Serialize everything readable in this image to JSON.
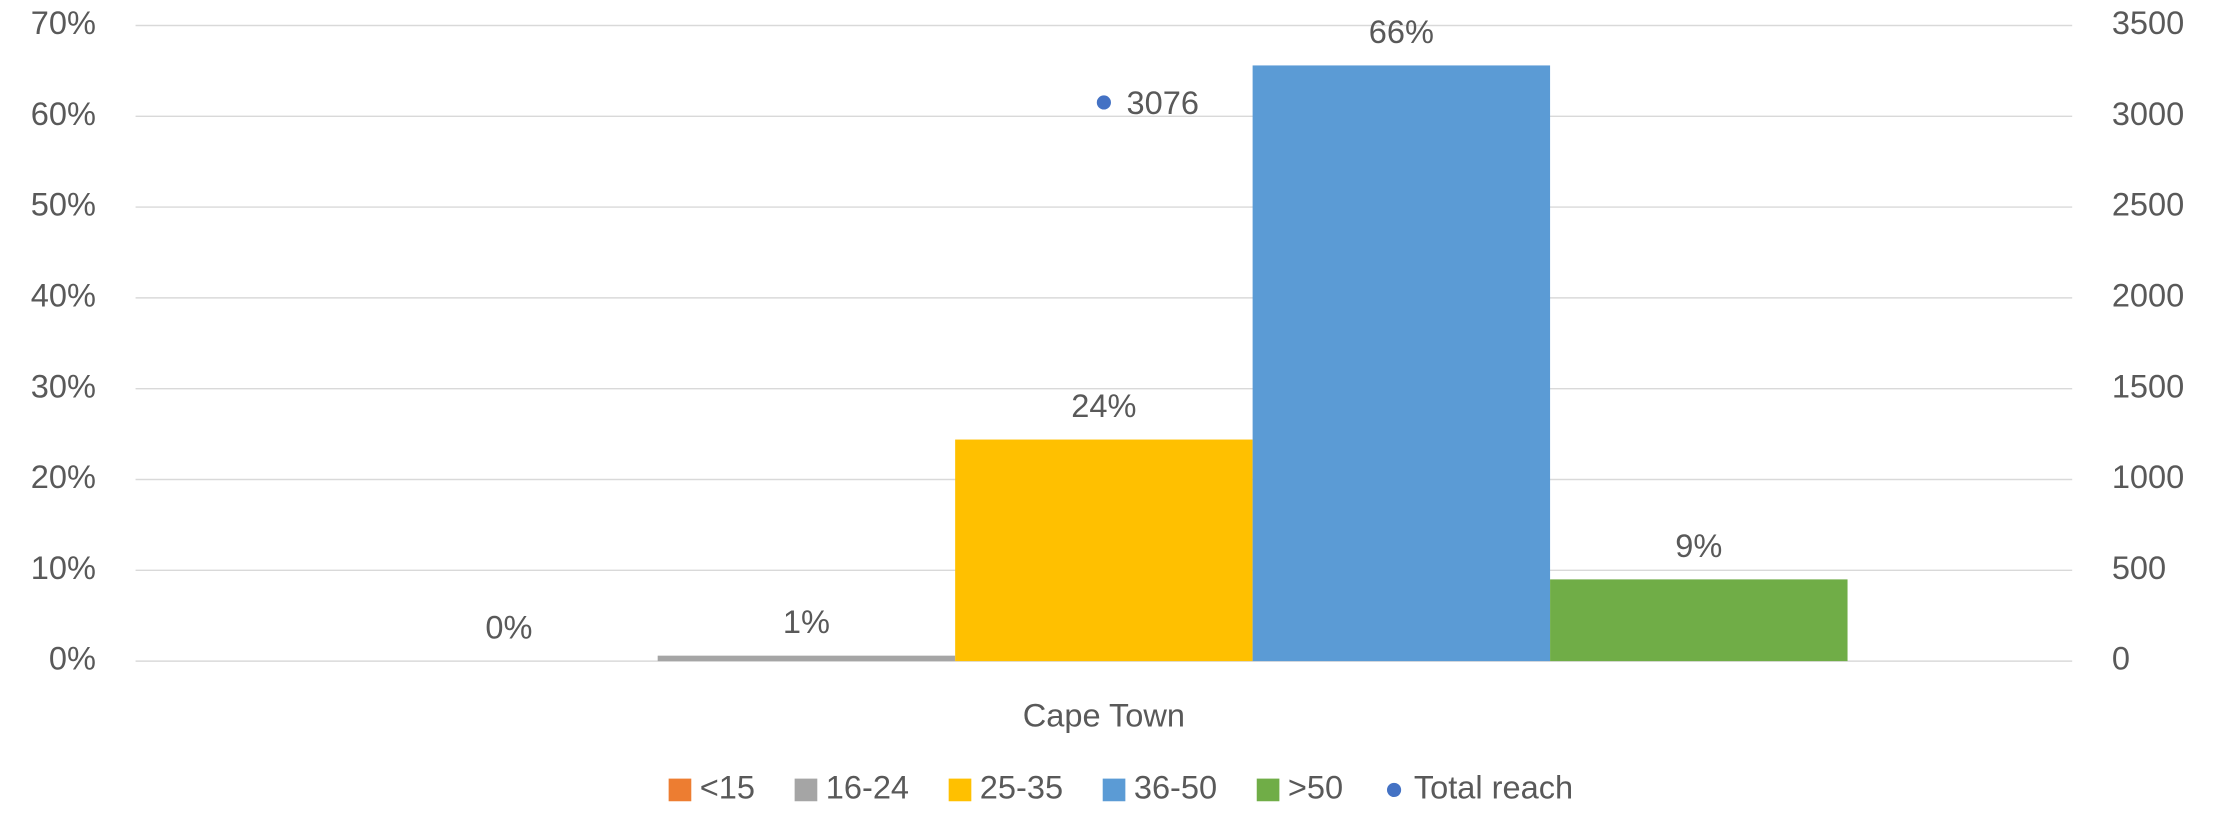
{
  "chart_data": {
    "type": "bar",
    "categories": [
      "Cape Town"
    ],
    "series": [
      {
        "name": "<15",
        "color": "#ed7d31",
        "values": [
          0
        ],
        "value_labels": [
          "0%"
        ]
      },
      {
        "name": "16-24",
        "color": "#a5a5a5",
        "values": [
          0.6
        ],
        "value_labels": [
          "1%"
        ]
      },
      {
        "name": "25-35",
        "color": "#ffc000",
        "values": [
          24.4
        ],
        "value_labels": [
          "24%"
        ]
      },
      {
        "name": "36-50",
        "color": "#5b9bd5",
        "values": [
          65.6
        ],
        "value_labels": [
          "66%"
        ]
      },
      {
        "name": ">50",
        "color": "#70ad47",
        "values": [
          9.0
        ],
        "value_labels": [
          "9%"
        ]
      },
      {
        "name": "Total reach",
        "color": "#4472c4",
        "type": "scatter",
        "axis": "y2",
        "values": [
          3076
        ]
      }
    ],
    "ylim": [
      0,
      70
    ],
    "yticks": [
      {
        "value": 0,
        "label": "0%"
      },
      {
        "value": 10,
        "label": "10%"
      },
      {
        "value": 20,
        "label": "20%"
      },
      {
        "value": 30,
        "label": "30%"
      },
      {
        "value": 40,
        "label": "40%"
      },
      {
        "value": 50,
        "label": "50%"
      },
      {
        "value": 60,
        "label": "60%"
      },
      {
        "value": 70,
        "label": "70%"
      }
    ],
    "y2lim": [
      0,
      3500
    ],
    "y2ticks": [
      0,
      500,
      1000,
      1500,
      2000,
      2500,
      3000,
      3500
    ],
    "grid": true,
    "legend": "bottom"
  }
}
